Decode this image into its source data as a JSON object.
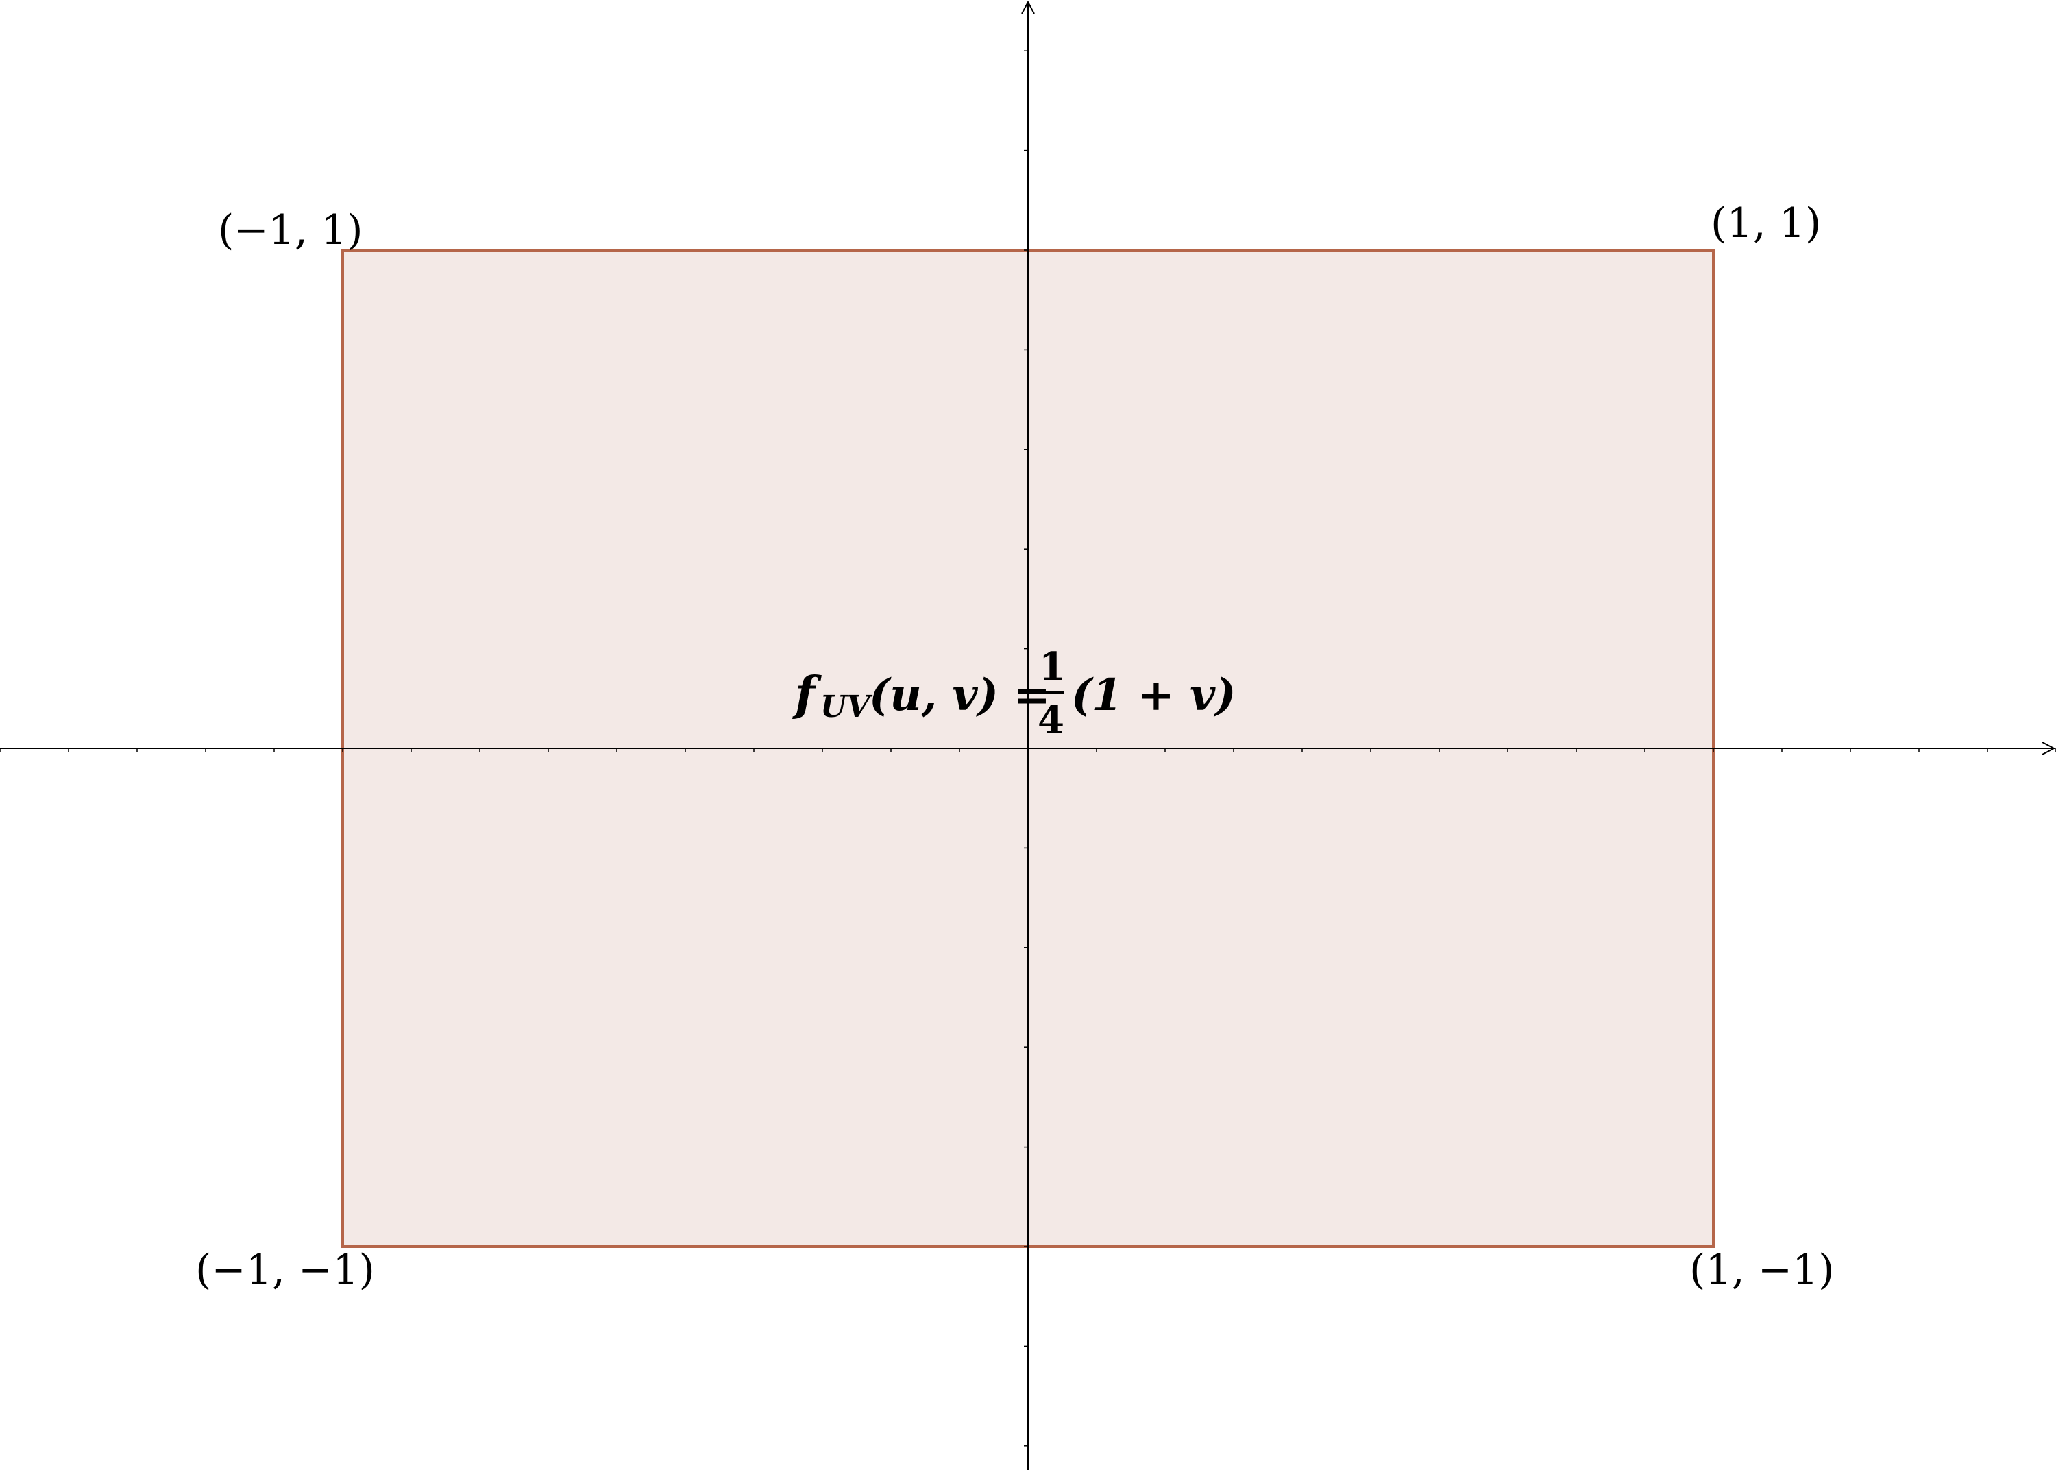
{
  "axes": {
    "x_range": [
      -1.5,
      1.5
    ],
    "y_range": [
      -1.45,
      1.45
    ],
    "x_tick_step": 0.1,
    "y_tick_step": 0.2,
    "grid": false
  },
  "region": {
    "u_range": [
      -1,
      1
    ],
    "v_range": [
      -1,
      1
    ],
    "stroke_color": "#b5664a",
    "fill_color": "#f3e9e6"
  },
  "corners": {
    "top_left": "(−1, 1)",
    "top_right": "(1, 1)",
    "bottom_left": "(−1, −1)",
    "bottom_right": "(1, −1)"
  },
  "formula": {
    "f": "f",
    "subscript": "UV",
    "args": "(u, v) =",
    "numerator": "1",
    "denominator": "4",
    "tail": "(1 + v)"
  }
}
